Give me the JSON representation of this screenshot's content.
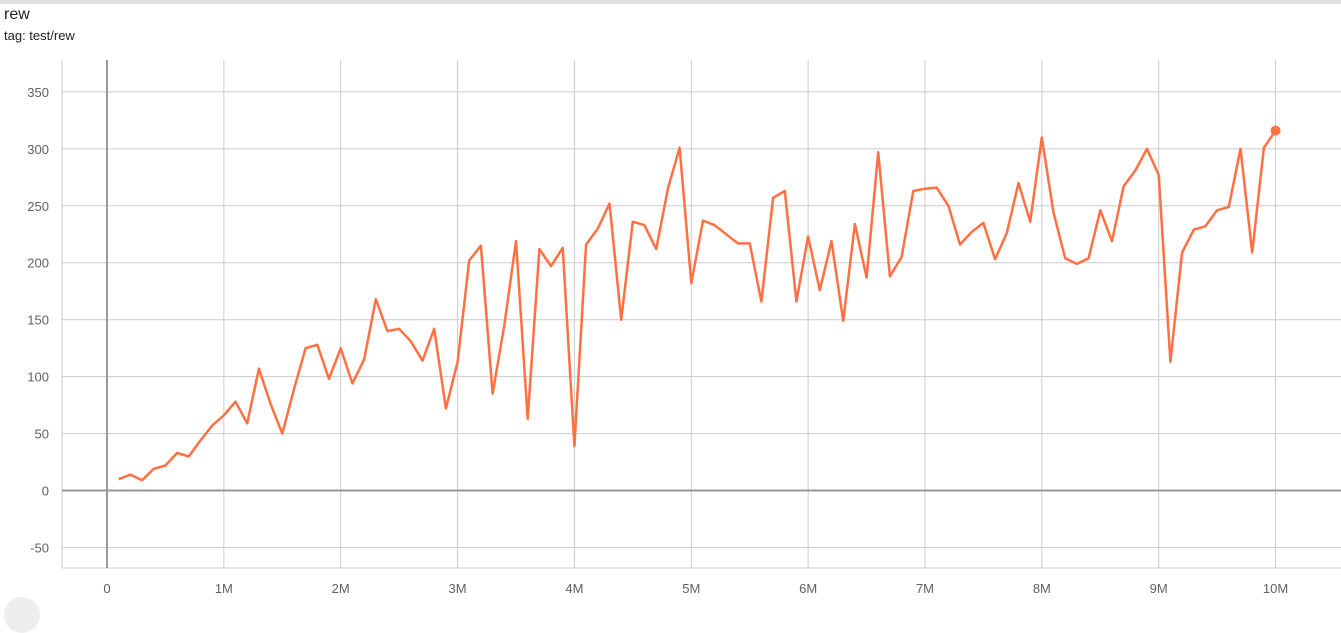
{
  "header": {
    "title": "rew",
    "tag": "tag: test/rew"
  },
  "colors": {
    "series": "#ff7043",
    "grid": "#cccccc",
    "axis": "#999999"
  },
  "chart_data": {
    "type": "line",
    "title": "rew",
    "subtitle": "tag: test/rew",
    "xlabel": "",
    "ylabel": "",
    "xlim": [
      -0.385,
      10.56
    ],
    "ylim": [
      -68,
      378
    ],
    "grid": true,
    "x_ticks": [
      0,
      1,
      2,
      3,
      4,
      5,
      6,
      7,
      8,
      9,
      10
    ],
    "x_tick_labels": [
      "0",
      "1M",
      "2M",
      "3M",
      "4M",
      "5M",
      "6M",
      "7M",
      "8M",
      "9M",
      "10M"
    ],
    "y_ticks": [
      -50,
      0,
      50,
      100,
      150,
      200,
      250,
      300,
      350
    ],
    "y_tick_labels": [
      "-50",
      "0",
      "50",
      "100",
      "150",
      "200",
      "250",
      "300",
      "350"
    ],
    "x_unit": "M steps",
    "series": [
      {
        "x": [
          0.1,
          0.2,
          0.3,
          0.4,
          0.5,
          0.6,
          0.7,
          0.8,
          0.9,
          1.0,
          1.1,
          1.2,
          1.3,
          1.4,
          1.5,
          1.6,
          1.7,
          1.8,
          1.9,
          2.0,
          2.1,
          2.2,
          2.3,
          2.4,
          2.5,
          2.6,
          2.7,
          2.8,
          2.9,
          3.0,
          3.1,
          3.2,
          3.3,
          3.4,
          3.5,
          3.6,
          3.7,
          3.8,
          3.9,
          4.0,
          4.1,
          4.2,
          4.3,
          4.4,
          4.5,
          4.6,
          4.7,
          4.8,
          4.9,
          5.0,
          5.1,
          5.2,
          5.3,
          5.4,
          5.5,
          5.6,
          5.7,
          5.8,
          5.9,
          6.0,
          6.1,
          6.2,
          6.3,
          6.4,
          6.5,
          6.6,
          6.7,
          6.8,
          6.9,
          7.0,
          7.1,
          7.2,
          7.3,
          7.4,
          7.5,
          7.6,
          7.7,
          7.8,
          7.9,
          8.0,
          8.1,
          8.2,
          8.3,
          8.4,
          8.5,
          8.6,
          8.7,
          8.8,
          8.9,
          9.0,
          9.1,
          9.2,
          9.3,
          9.4,
          9.5,
          9.6,
          9.7,
          9.8,
          9.9,
          10.0
        ],
        "y": [
          10,
          14,
          9,
          19,
          22,
          33,
          30,
          44,
          57,
          66,
          78,
          59,
          107,
          76,
          50,
          89,
          125,
          128,
          98,
          125,
          94,
          115,
          168,
          140,
          142,
          131,
          114,
          142,
          72,
          113,
          202,
          215,
          85,
          145,
          219,
          63,
          212,
          197,
          213,
          39,
          216,
          230,
          252,
          150,
          236,
          233,
          212,
          265,
          301,
          182,
          237,
          233,
          225,
          217,
          217,
          166,
          257,
          263,
          166,
          223,
          176,
          219,
          149,
          234,
          187,
          297,
          188,
          205,
          263,
          265,
          266,
          250,
          216,
          227,
          235,
          203,
          226,
          270,
          236,
          310,
          244,
          204,
          199,
          204,
          246,
          219,
          267,
          281,
          300,
          277,
          113,
          209,
          229,
          232,
          246,
          249,
          300,
          209,
          301,
          316
        ]
      }
    ]
  }
}
